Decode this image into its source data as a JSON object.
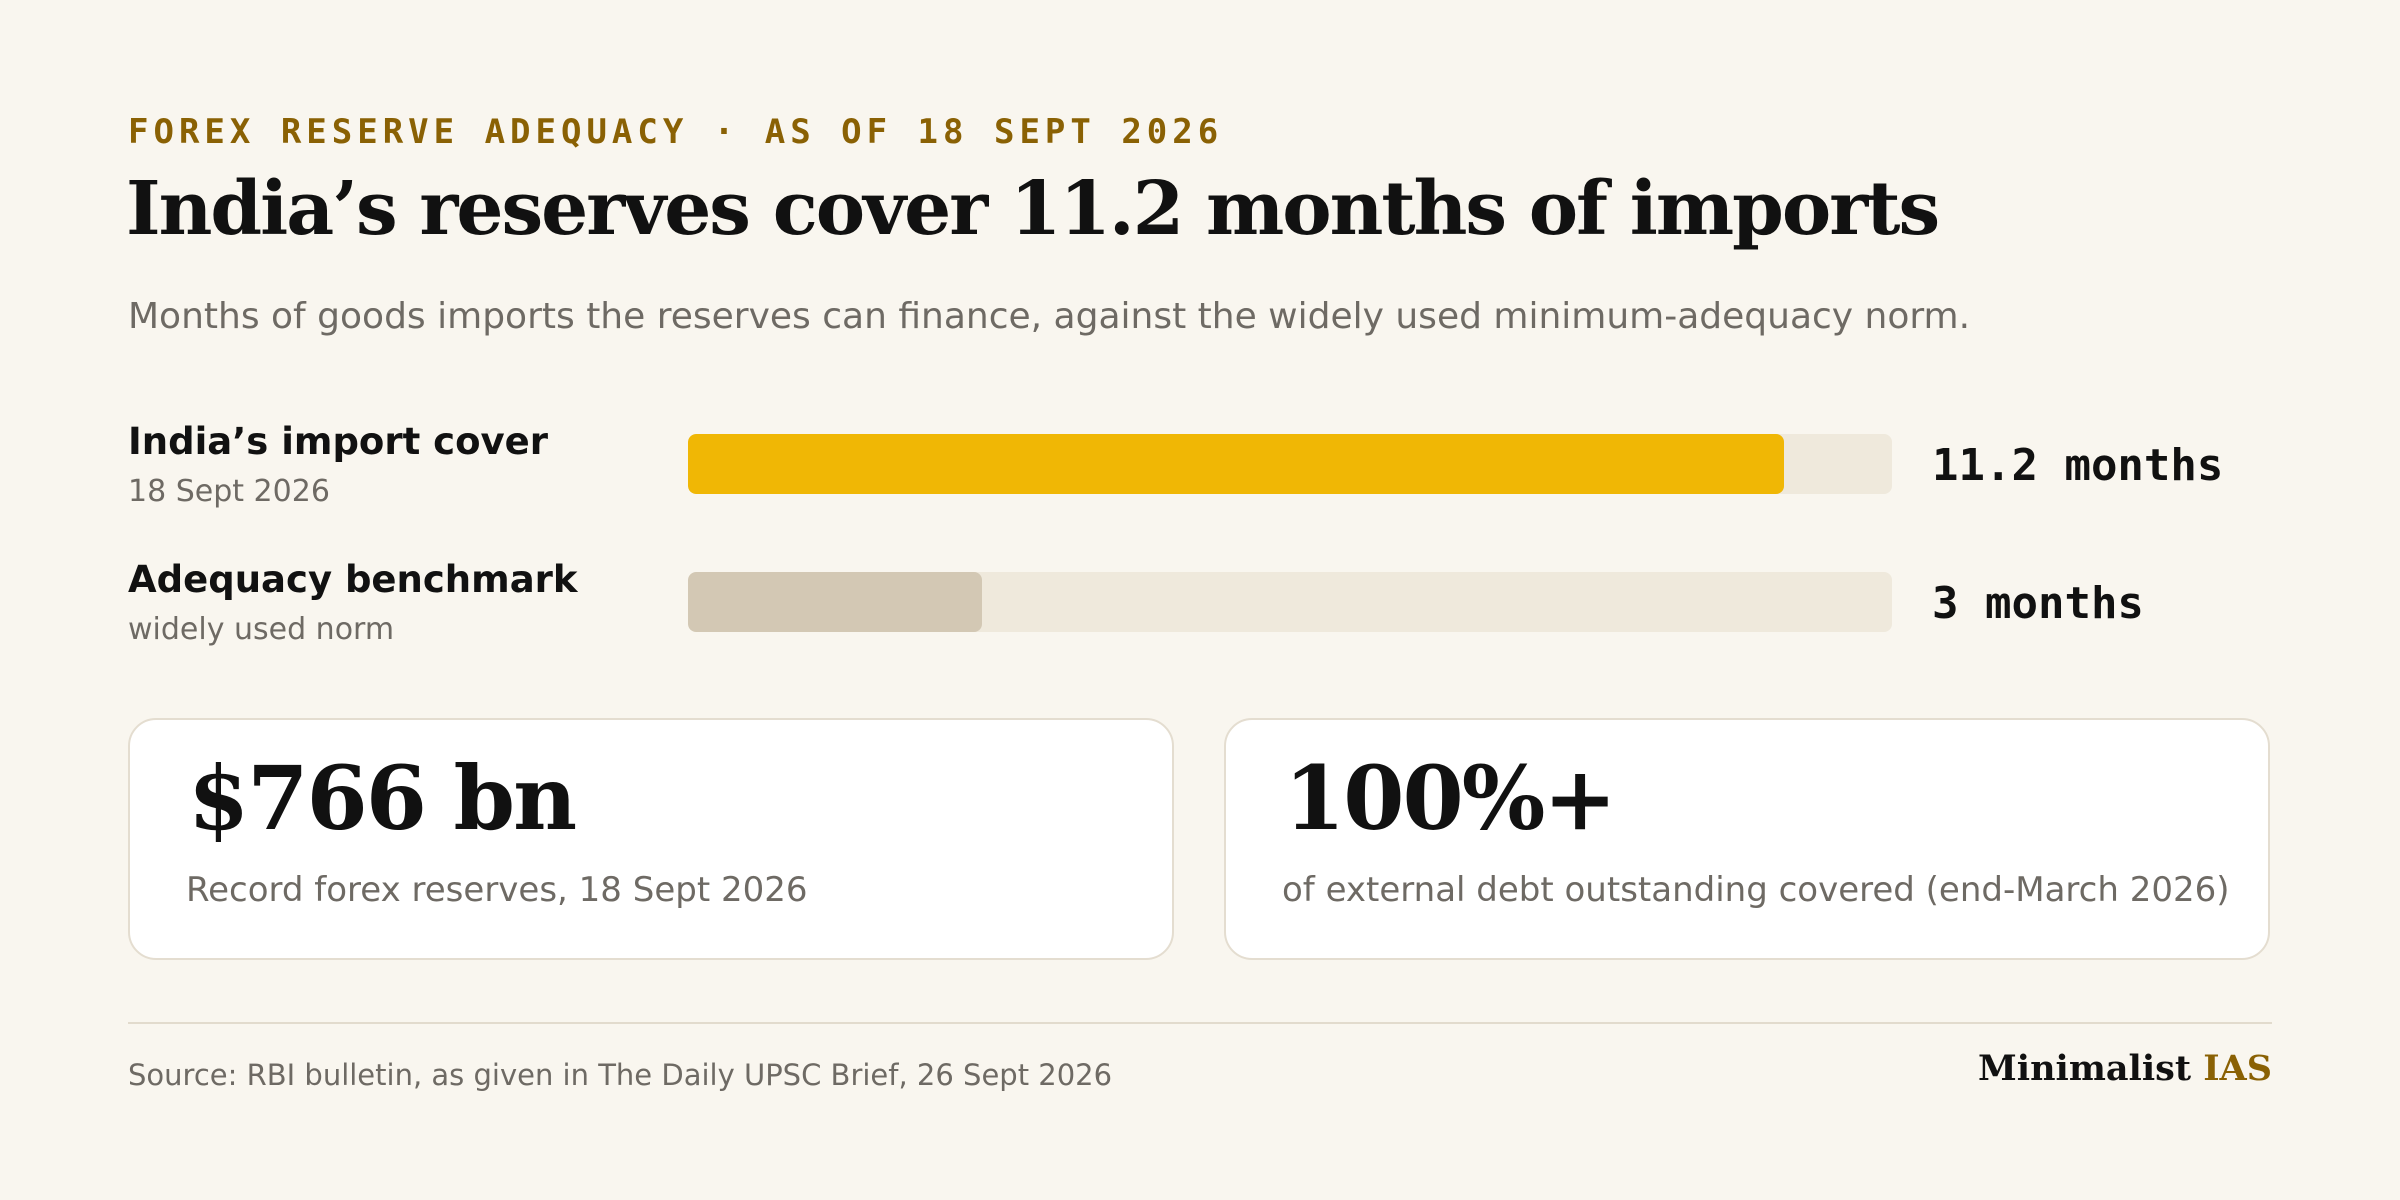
{
  "header": {
    "kicker": "FOREX RESERVE ADEQUACY · AS OF 18 SEPT 2026",
    "title": "India’s reserves cover 11.2 months of imports",
    "subtitle": "Months of goods imports the reserves can finance, against the widely used minimum-adequacy norm."
  },
  "chart_data": {
    "type": "bar",
    "orientation": "horizontal",
    "title": "India’s reserves cover 11.2 months of imports",
    "subtitle": "Months of goods imports the reserves can finance, against the widely used minimum-adequacy norm.",
    "categories": [
      "India’s import cover",
      "Adequacy benchmark"
    ],
    "category_sublabels": [
      "18 Sept 2026",
      "widely used norm"
    ],
    "values": [
      11.2,
      3
    ],
    "value_labels": [
      "11.2 months",
      "3 months"
    ],
    "unit": "months",
    "xlim": [
      0,
      12.3
    ],
    "grid": false,
    "colors": [
      "#f0b705",
      "#d3c8b4"
    ],
    "track_color": "#efe9dc"
  },
  "cards": [
    {
      "big": "$766 bn",
      "text": "Record forex reserves, 18 Sept 2026"
    },
    {
      "big": "100%+",
      "text": "of external debt outstanding covered (end-March 2026)"
    }
  ],
  "footer": {
    "source": "Source: RBI bulletin, as given in The Daily UPSC Brief, 26 Sept 2026",
    "brand_main": "Minimalist",
    "brand_accent": "IAS"
  },
  "colors": {
    "background": "#f9f6ef",
    "accent": "#8a6104",
    "primary_bar": "#f0b705",
    "benchmark_bar": "#d3c8b4",
    "muted_text": "#6e6a64"
  }
}
